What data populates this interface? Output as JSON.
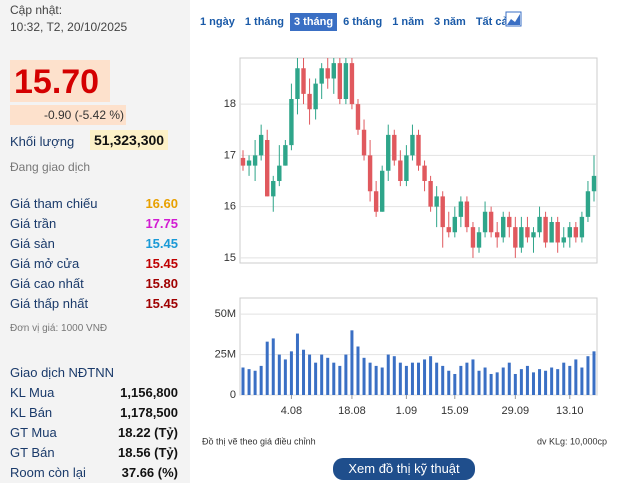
{
  "header": {
    "updated_label": "Cập nhật:",
    "updated_time": "10:32, T2, 20/10/2025"
  },
  "quote": {
    "price": "15.70",
    "change": "-0.90 (-5.42 %)",
    "volume_label": "Khối lượng",
    "volume_value": "51,323,300",
    "status": "Đang giao dịch"
  },
  "stats": [
    {
      "label": "Giá tham chiếu",
      "value": "16.60",
      "color": "#e8a000"
    },
    {
      "label": "Giá trần",
      "value": "17.75",
      "color": "#d21bd2"
    },
    {
      "label": "Giá sàn",
      "value": "15.45",
      "color": "#1a9ad6"
    },
    {
      "label": "Giá mở cửa",
      "value": "15.45",
      "color": "#c00000"
    },
    {
      "label": "Giá cao nhất",
      "value": "15.80",
      "color": "#a00000"
    },
    {
      "label": "Giá thấp nhất",
      "value": "15.45",
      "color": "#a00000"
    }
  ],
  "unit_note": "Đơn vị giá: 1000 VNĐ",
  "foreign": {
    "title": "Giao dịch NĐTNN",
    "rows": [
      {
        "label": "KL Mua",
        "value": "1,156,800"
      },
      {
        "label": "KL Bán",
        "value": "1,178,500"
      },
      {
        "label": "GT Mua",
        "value": "18.22 (Tỷ)"
      },
      {
        "label": "GT Bán",
        "value": "18.56 (Tỷ)"
      },
      {
        "label": "Room còn lại",
        "value": "37.66 (%)"
      }
    ]
  },
  "tabs": {
    "items": [
      "1 ngày",
      "1 tháng",
      "3 tháng",
      "6 tháng",
      "1 năm",
      "3 năm",
      "Tất cả"
    ],
    "active": 2
  },
  "footer": {
    "note": "Đồ thị vẽ theo giá điều chỉnh",
    "unit": "dv KLg: 10,000cp",
    "button": "Xem đồ thị kỹ thuật"
  },
  "chart_data": {
    "type": "candlestick",
    "grid": true,
    "up_color": "#2ea58a",
    "down_color": "#e0595e",
    "categories": [
      null,
      null,
      null,
      null,
      null,
      null,
      null,
      null,
      "4.08",
      null,
      null,
      null,
      null,
      null,
      null,
      null,
      null,
      null,
      "18.08",
      null,
      null,
      null,
      null,
      null,
      null,
      null,
      null,
      "1.09",
      null,
      null,
      null,
      null,
      null,
      null,
      null,
      "15.09",
      null,
      null,
      null,
      null,
      null,
      null,
      null,
      null,
      null,
      "29.09",
      null,
      null,
      null,
      null,
      null,
      null,
      null,
      null,
      "13.10",
      null,
      null,
      null,
      null
    ],
    "open": [
      16.95,
      16.8,
      16.8,
      17.0,
      17.3,
      16.2,
      16.5,
      16.8,
      17.2,
      18.1,
      18.7,
      18.2,
      17.9,
      18.4,
      18.7,
      18.5,
      18.8,
      18.1,
      18.8,
      18.0,
      17.5,
      17.0,
      16.3,
      15.9,
      16.7,
      17.4,
      16.9,
      16.5,
      17.0,
      17.4,
      16.8,
      16.5,
      16.0,
      16.2,
      15.6,
      15.5,
      15.8,
      16.1,
      15.6,
      15.2,
      15.5,
      15.9,
      15.5,
      15.4,
      15.8,
      15.6,
      15.2,
      15.6,
      15.4,
      15.5,
      15.8,
      15.3,
      15.7,
      15.3,
      15.4,
      15.6,
      15.4,
      15.8,
      16.3
    ],
    "high": [
      17.1,
      17.0,
      17.3,
      17.6,
      17.5,
      16.6,
      17.2,
      17.3,
      18.4,
      18.9,
      18.9,
      18.5,
      18.5,
      18.8,
      18.9,
      18.9,
      18.9,
      18.9,
      18.9,
      18.1,
      17.7,
      17.3,
      16.5,
      16.8,
      17.6,
      17.5,
      17.1,
      17.2,
      17.6,
      17.5,
      16.9,
      16.6,
      16.4,
      16.3,
      15.9,
      16.0,
      16.2,
      16.2,
      15.7,
      15.6,
      16.1,
      16.0,
      15.7,
      15.9,
      15.9,
      15.8,
      15.8,
      15.8,
      15.6,
      16.0,
      15.9,
      15.8,
      15.8,
      15.6,
      15.7,
      15.7,
      15.9,
      16.5,
      17.0
    ],
    "low": [
      16.7,
      16.6,
      16.5,
      16.9,
      16.2,
      15.9,
      16.4,
      16.8,
      17.1,
      17.8,
      18.0,
      17.6,
      17.7,
      18.1,
      18.3,
      18.2,
      18.0,
      18.0,
      17.9,
      17.4,
      16.9,
      16.1,
      15.8,
      15.9,
      16.5,
      16.8,
      16.4,
      16.4,
      16.9,
      16.7,
      16.3,
      15.9,
      15.6,
      15.2,
      15.4,
      15.4,
      15.6,
      15.5,
      15.0,
      15.1,
      15.4,
      15.4,
      15.2,
      15.3,
      15.4,
      15.0,
      15.1,
      15.3,
      15.1,
      15.4,
      15.2,
      15.3,
      15.1,
      15.2,
      15.2,
      15.3,
      15.3,
      15.7,
      16.1
    ],
    "close": [
      16.8,
      16.9,
      17.0,
      17.4,
      16.2,
      16.5,
      16.8,
      17.2,
      18.1,
      18.7,
      18.2,
      17.9,
      18.4,
      18.7,
      18.5,
      18.8,
      18.1,
      18.8,
      18.0,
      17.5,
      17.0,
      16.3,
      15.9,
      16.7,
      17.4,
      16.9,
      16.5,
      17.0,
      17.4,
      16.8,
      16.5,
      16.0,
      16.2,
      15.6,
      15.5,
      15.8,
      16.1,
      15.6,
      15.2,
      15.5,
      15.9,
      15.5,
      15.4,
      15.8,
      15.6,
      15.2,
      15.6,
      15.4,
      15.5,
      15.8,
      15.3,
      15.7,
      15.3,
      15.4,
      15.6,
      15.4,
      15.8,
      16.3,
      16.6
    ],
    "ylim": [
      14.9,
      18.9
    ],
    "yticks": [
      15,
      16,
      17,
      18
    ],
    "volume": {
      "color": "#3a6fc4",
      "values": [
        17000000,
        16000000,
        15000000,
        18000000,
        33000000,
        35000000,
        25000000,
        22000000,
        27000000,
        38000000,
        28000000,
        25000000,
        20000000,
        25000000,
        23000000,
        20000000,
        18000000,
        25000000,
        40000000,
        30000000,
        23000000,
        20000000,
        18000000,
        17000000,
        25000000,
        24000000,
        20000000,
        18000000,
        20000000,
        20000000,
        22000000,
        24000000,
        20000000,
        18000000,
        15000000,
        13000000,
        18000000,
        20000000,
        22000000,
        15000000,
        17000000,
        13000000,
        14000000,
        17000000,
        20000000,
        13000000,
        16000000,
        18000000,
        14000000,
        16000000,
        15000000,
        17000000,
        16000000,
        20000000,
        18000000,
        22000000,
        17000000,
        24000000,
        27000000
      ],
      "ylim": [
        0,
        60000000
      ],
      "yticks": [
        0,
        {
          "value": 25000000,
          "label": "25M"
        },
        {
          "value": 50000000,
          "label": "50M"
        }
      ]
    }
  }
}
